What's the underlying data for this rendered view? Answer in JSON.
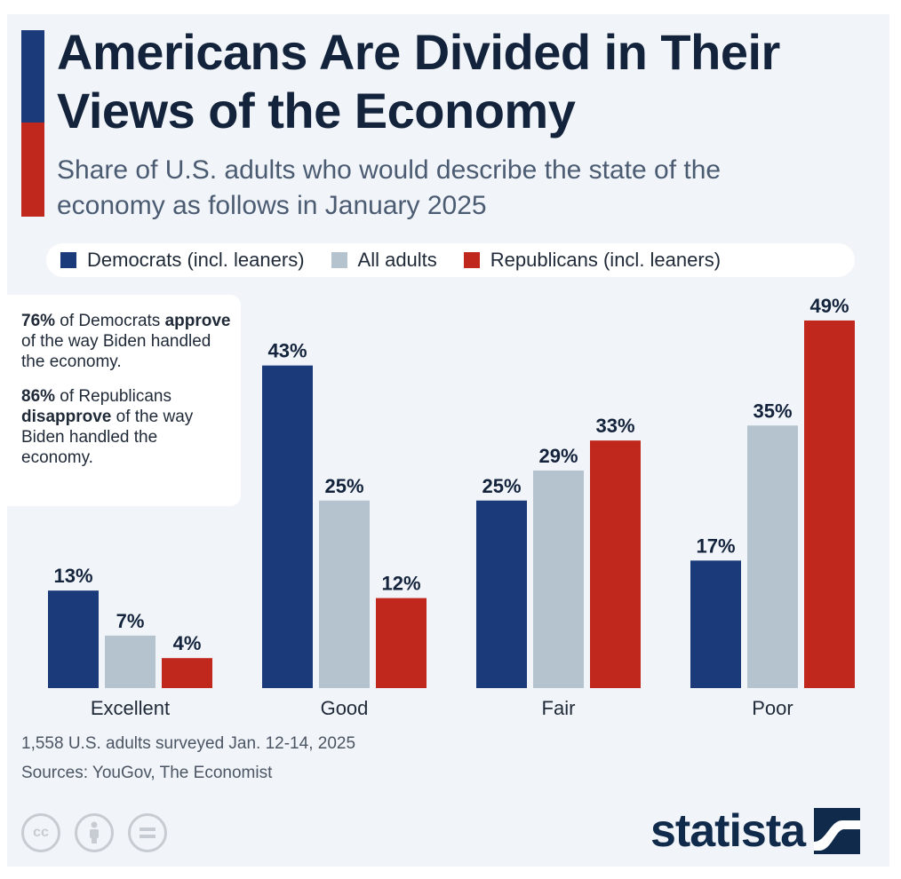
{
  "colors": {
    "background": "#f1f5f9",
    "title": "#14233c",
    "subtitle": "#4b5b72",
    "democrats": "#1a3a7a",
    "all_adults": "#b4c3cd",
    "republicans": "#c0281e",
    "accent_top": "#1a3a7a",
    "accent_bottom": "#c0281e"
  },
  "header": {
    "title": "Americans Are Divided in Their Views of the Economy",
    "subtitle": "Share of U.S. adults who would describe the state of the economy as follows in January 2025"
  },
  "note": {
    "line1_bold": "76%",
    "line1_rest": " of Democrats ",
    "line1_verb": "approve",
    "line1_tail": " of the way Biden handled the economy.",
    "line2_bold": "86%",
    "line2_rest": " of Republicans ",
    "line2_verb": "disapprove",
    "line2_tail": " of the way Biden handled the economy."
  },
  "footer": {
    "survey": "1,558 U.S. adults surveyed Jan. 12-14, 2025",
    "sources": "Sources: YouGov, The Economist",
    "logo": "statista",
    "license_icons": [
      "cc-icon",
      "by-icon",
      "nd-icon"
    ]
  },
  "chart_data": {
    "type": "bar",
    "categories": [
      "Excellent",
      "Good",
      "Fair",
      "Poor"
    ],
    "series": [
      {
        "name": "Democrats (incl. leaners)",
        "values": [
          13,
          43,
          25,
          17
        ]
      },
      {
        "name": "All adults",
        "values": [
          7,
          25,
          29,
          35
        ]
      },
      {
        "name": "Republicans (incl. leaners)",
        "values": [
          4,
          12,
          33,
          49
        ]
      }
    ],
    "value_suffix": "%",
    "ylim": [
      0,
      50
    ],
    "grid": false,
    "legend": "top"
  }
}
